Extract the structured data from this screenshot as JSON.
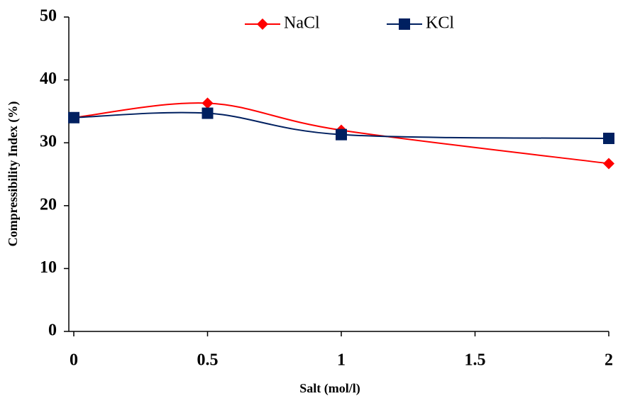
{
  "chart_data": {
    "type": "line",
    "x_label": "Salt (mol/l)",
    "y_label": "Compressibility Index (%)",
    "x": [
      0,
      0.5,
      1,
      2
    ],
    "series": [
      {
        "name": "NaCl",
        "color": "#ff0000",
        "marker": "diamond",
        "values": [
          34,
          36.3,
          32,
          26.7
        ]
      },
      {
        "name": "KCl",
        "color": "#002060",
        "marker": "square",
        "values": [
          34,
          34.7,
          31.3,
          30.7
        ]
      }
    ],
    "xlim": [
      0,
      2
    ],
    "xticks": [
      0,
      0.5,
      1,
      1.5,
      2
    ],
    "ylim": [
      0,
      50
    ],
    "yticks": [
      0,
      10,
      20,
      30,
      40,
      50
    ],
    "smooth": true,
    "legend": "top"
  }
}
